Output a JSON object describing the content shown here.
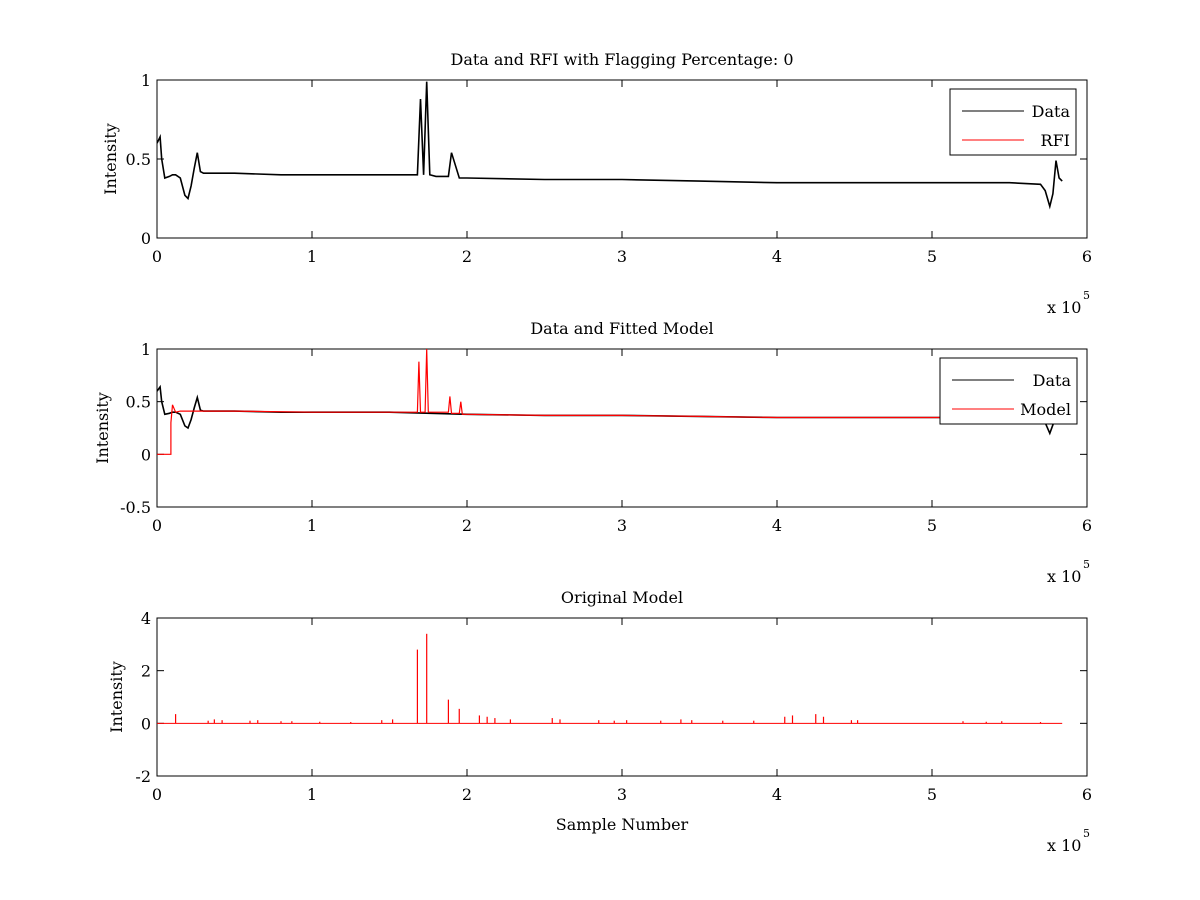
{
  "chart_data": [
    {
      "type": "line",
      "title": "Data and RFI with Flagging Percentage: 0",
      "xlabel": "",
      "ylabel": "Intensity",
      "xlim": [
        0,
        6
      ],
      "ylim": [
        0,
        1
      ],
      "xticks": [
        0,
        1,
        2,
        3,
        4,
        5,
        6
      ],
      "yticks": [
        0,
        0.5,
        1
      ],
      "x_multiplier_label": "x 10",
      "x_multiplier_exponent": "5",
      "legend": {
        "position": "top-right",
        "entries": [
          "Data",
          "RFI"
        ]
      },
      "series": [
        {
          "name": "Data",
          "color": "#000000",
          "x": [
            0,
            0.01,
            0.02,
            0.03,
            0.05,
            0.08,
            0.1,
            0.12,
            0.15,
            0.18,
            0.2,
            0.22,
            0.24,
            0.26,
            0.28,
            0.3,
            0.5,
            0.8,
            1.0,
            1.2,
            1.5,
            1.68,
            1.7,
            1.72,
            1.74,
            1.76,
            1.8,
            1.88,
            1.9,
            1.95,
            2.0,
            2.5,
            3.0,
            3.5,
            4.0,
            4.5,
            5.0,
            5.5,
            5.7,
            5.73,
            5.76,
            5.78,
            5.8,
            5.82,
            5.84
          ],
          "y": [
            0.6,
            0.62,
            0.64,
            0.5,
            0.38,
            0.39,
            0.4,
            0.4,
            0.38,
            0.27,
            0.25,
            0.33,
            0.44,
            0.54,
            0.42,
            0.41,
            0.41,
            0.4,
            0.4,
            0.4,
            0.4,
            0.4,
            0.88,
            0.4,
            0.99,
            0.4,
            0.39,
            0.39,
            0.54,
            0.38,
            0.38,
            0.37,
            0.37,
            0.36,
            0.35,
            0.35,
            0.35,
            0.35,
            0.34,
            0.3,
            0.2,
            0.28,
            0.49,
            0.38,
            0.36
          ]
        }
      ]
    },
    {
      "type": "line",
      "title": "Data and Fitted Model",
      "xlabel": "",
      "ylabel": "Intensity",
      "xlim": [
        0,
        6
      ],
      "ylim": [
        -0.5,
        1
      ],
      "xticks": [
        0,
        1,
        2,
        3,
        4,
        5,
        6
      ],
      "yticks": [
        -0.5,
        0,
        0.5,
        1
      ],
      "x_multiplier_label": "x 10",
      "x_multiplier_exponent": "5",
      "legend": {
        "position": "top-right",
        "entries": [
          "Data",
          "Model"
        ]
      },
      "series": [
        {
          "name": "Data",
          "color": "#000000",
          "x": [
            0,
            0.01,
            0.02,
            0.03,
            0.05,
            0.08,
            0.1,
            0.12,
            0.15,
            0.18,
            0.2,
            0.22,
            0.24,
            0.26,
            0.28,
            0.3,
            0.5,
            0.8,
            1.0,
            1.5,
            2.0,
            2.5,
            3.0,
            3.5,
            4.0,
            4.5,
            5.0,
            5.5,
            5.7,
            5.73,
            5.76,
            5.78,
            5.8
          ],
          "y": [
            0.6,
            0.62,
            0.64,
            0.5,
            0.38,
            0.39,
            0.4,
            0.4,
            0.38,
            0.27,
            0.25,
            0.33,
            0.44,
            0.54,
            0.42,
            0.41,
            0.41,
            0.4,
            0.4,
            0.4,
            0.38,
            0.37,
            0.37,
            0.36,
            0.35,
            0.35,
            0.35,
            0.35,
            0.34,
            0.3,
            0.2,
            0.28,
            0.36
          ]
        },
        {
          "name": "Model",
          "color": "#ff0000",
          "x": [
            0,
            0.09,
            0.09,
            0.1,
            0.12,
            0.15,
            0.5,
            1.0,
            1.5,
            1.68,
            1.69,
            1.7,
            1.73,
            1.74,
            1.75,
            1.88,
            1.89,
            1.9,
            1.95,
            1.96,
            1.97,
            2.0,
            2.5,
            3.0,
            3.5,
            4.0,
            4.5,
            5.0,
            5.5,
            5.84
          ],
          "y": [
            0.0,
            0.0,
            0.3,
            0.47,
            0.4,
            0.41,
            0.41,
            0.4,
            0.4,
            0.4,
            0.88,
            0.4,
            0.4,
            1.0,
            0.4,
            0.4,
            0.55,
            0.39,
            0.39,
            0.5,
            0.38,
            0.38,
            0.37,
            0.37,
            0.36,
            0.35,
            0.35,
            0.35,
            0.35,
            0.35
          ]
        }
      ]
    },
    {
      "type": "line",
      "title": "Original Model",
      "xlabel": "Sample Number",
      "ylabel": "Intensity",
      "xlim": [
        0,
        6
      ],
      "ylim": [
        -2,
        4
      ],
      "xticks": [
        0,
        1,
        2,
        3,
        4,
        5,
        6
      ],
      "yticks": [
        -2,
        0,
        2,
        4
      ],
      "x_multiplier_label": "x 10",
      "x_multiplier_exponent": "5",
      "series": [
        {
          "name": "Original Model",
          "color": "#ff0000",
          "baseline": 0,
          "x_end": 5.84,
          "spikes": [
            [
              0.12,
              0.35
            ],
            [
              0.33,
              0.1
            ],
            [
              0.37,
              0.15
            ],
            [
              0.42,
              0.12
            ],
            [
              0.6,
              0.1
            ],
            [
              0.65,
              0.12
            ],
            [
              0.8,
              0.08
            ],
            [
              0.87,
              0.08
            ],
            [
              1.05,
              0.06
            ],
            [
              1.25,
              0.05
            ],
            [
              1.45,
              0.12
            ],
            [
              1.52,
              0.15
            ],
            [
              1.68,
              2.8
            ],
            [
              1.74,
              3.4
            ],
            [
              1.88,
              0.9
            ],
            [
              1.95,
              0.55
            ],
            [
              2.08,
              0.3
            ],
            [
              2.13,
              0.25
            ],
            [
              2.18,
              0.2
            ],
            [
              2.28,
              0.15
            ],
            [
              2.55,
              0.2
            ],
            [
              2.6,
              0.15
            ],
            [
              2.85,
              0.12
            ],
            [
              2.95,
              0.1
            ],
            [
              3.03,
              0.12
            ],
            [
              3.25,
              0.1
            ],
            [
              3.38,
              0.15
            ],
            [
              3.45,
              0.12
            ],
            [
              3.65,
              0.1
            ],
            [
              3.85,
              0.1
            ],
            [
              4.05,
              0.25
            ],
            [
              4.1,
              0.3
            ],
            [
              4.25,
              0.35
            ],
            [
              4.3,
              0.25
            ],
            [
              4.48,
              0.12
            ],
            [
              4.52,
              0.12
            ],
            [
              5.2,
              0.08
            ],
            [
              5.35,
              0.06
            ],
            [
              5.45,
              0.08
            ],
            [
              5.7,
              0.05
            ]
          ]
        }
      ]
    }
  ]
}
